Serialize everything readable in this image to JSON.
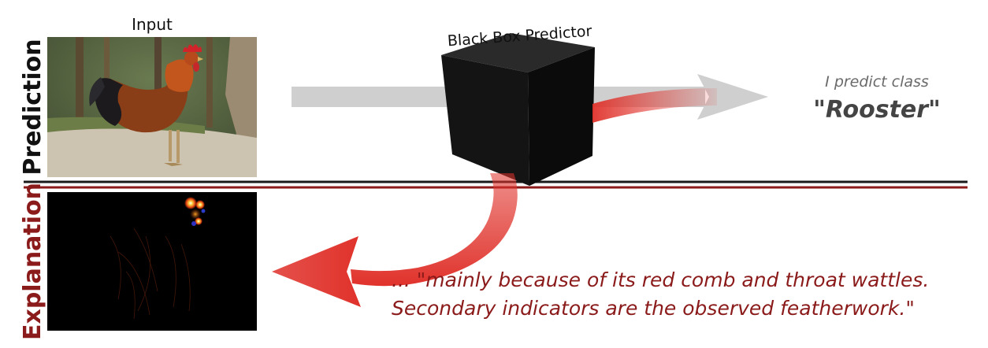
{
  "labels": {
    "prediction_side": "Prediction",
    "explanation_side": "Explanation",
    "input": "Input",
    "black_box": "Black Box Predictor"
  },
  "prediction": {
    "intro": "I predict class",
    "class_name": "Rooster"
  },
  "explanation": {
    "line1": "... \"mainly because of its red comb and throat wattles.",
    "line2": "Secondary indicators are the observed featherwork.\""
  },
  "colors": {
    "explanation_red": "#8b1a1a",
    "arrow_red": "#e0322b",
    "arrow_gray": "#cfcfcf",
    "divider_dark": "#1a1a1a",
    "divider_red": "#8b1a1a",
    "box_face": "#141414"
  }
}
